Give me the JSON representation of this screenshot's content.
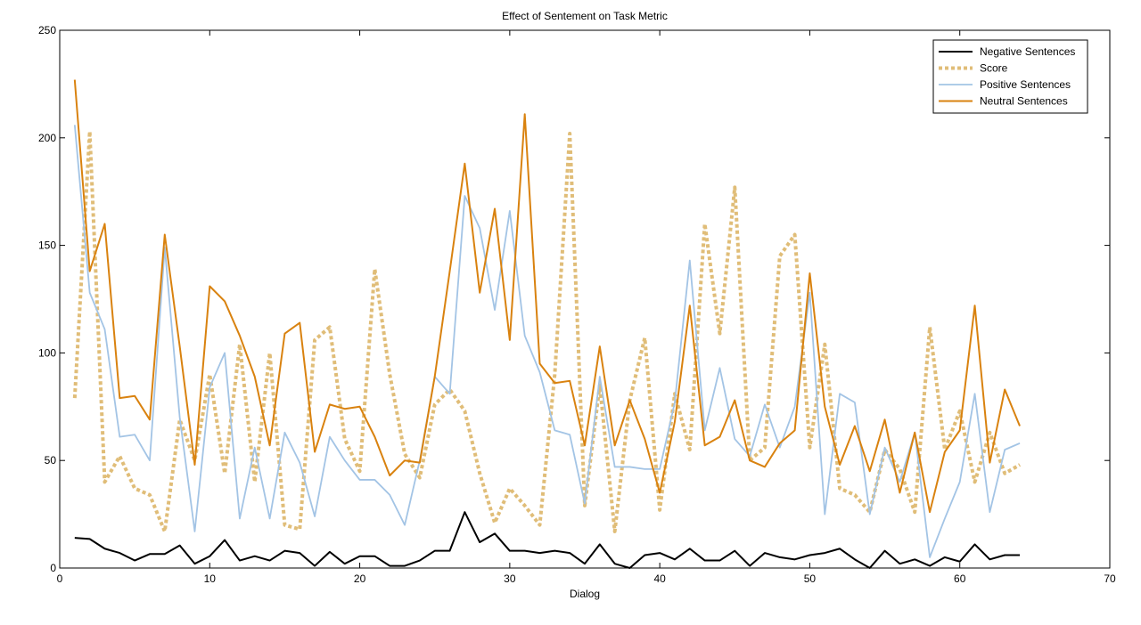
{
  "chart_data": {
    "type": "line",
    "title": "Effect of Sentement on Task Metric",
    "xlabel": "Dialog",
    "ylabel": "",
    "xlim": [
      0,
      70
    ],
    "ylim": [
      0,
      250
    ],
    "xticks": [
      0,
      10,
      20,
      30,
      40,
      50,
      60,
      70
    ],
    "yticks": [
      0,
      50,
      100,
      150,
      200,
      250
    ],
    "grid": false,
    "legend_position": "top-right",
    "x": [
      1,
      2,
      3,
      4,
      5,
      6,
      7,
      8,
      9,
      10,
      11,
      12,
      13,
      14,
      15,
      16,
      17,
      18,
      19,
      20,
      21,
      22,
      23,
      24,
      25,
      26,
      27,
      28,
      29,
      30,
      31,
      32,
      33,
      34,
      35,
      36,
      37,
      38,
      39,
      40,
      41,
      42,
      43,
      44,
      45,
      46,
      47,
      48,
      49,
      50,
      51,
      52,
      53,
      54,
      55,
      56,
      57,
      58,
      59,
      60,
      61,
      62,
      63,
      64
    ],
    "series": [
      {
        "name": "Negative Sentences",
        "color": "#000000",
        "style": "solid",
        "values": [
          14,
          13.5,
          9,
          7,
          3.5,
          6.5,
          6.5,
          10.5,
          2,
          5.5,
          13,
          3.5,
          5.5,
          3.5,
          8,
          7,
          1,
          7.5,
          2,
          5.5,
          5.5,
          1,
          1,
          3.5,
          8,
          8,
          26,
          12,
          16,
          8,
          8,
          7,
          8,
          7,
          2,
          11,
          2,
          0,
          6,
          7,
          4,
          9,
          3.5,
          3.5,
          8,
          1,
          7,
          5,
          4,
          6,
          7,
          9,
          4,
          0,
          8,
          2,
          4,
          1,
          5,
          3,
          11,
          4,
          6,
          6
        ]
      },
      {
        "name": "Score",
        "color": "#E0BD78",
        "style": "dotted",
        "values": [
          79,
          203,
          40,
          52,
          37,
          34,
          17,
          69,
          50,
          90,
          44,
          104,
          40,
          100,
          20,
          18,
          106,
          112,
          60,
          45,
          139,
          90,
          53,
          42,
          76,
          83,
          73,
          44,
          21,
          37,
          29,
          20,
          90,
          202,
          29,
          85,
          17,
          78,
          107,
          27,
          81,
          55,
          160,
          109,
          177,
          50,
          56,
          145,
          155,
          56,
          104,
          37,
          34,
          26,
          55,
          46,
          26,
          112,
          55,
          73,
          40,
          63,
          44,
          48
        ]
      },
      {
        "name": "Positive Sentences",
        "color": "#A3C4E5",
        "style": "solid",
        "values": [
          206,
          128,
          111,
          61,
          62,
          50,
          149,
          70,
          17,
          84,
          100,
          23,
          56,
          23,
          63,
          49,
          24,
          61,
          50,
          41,
          41,
          34,
          20,
          50,
          89,
          81,
          173,
          158,
          120,
          166,
          108,
          91,
          64,
          62,
          30,
          89,
          47,
          47,
          46,
          46,
          77,
          143,
          64,
          93,
          60,
          52,
          76,
          56,
          75,
          128,
          25,
          81,
          77,
          25,
          56,
          40,
          63,
          5,
          23,
          40,
          81,
          26,
          55,
          58
        ]
      },
      {
        "name": "Neutral Sentences",
        "color": "#D9820F",
        "style": "solid",
        "values": [
          227,
          138,
          160,
          79,
          80,
          69,
          155,
          103,
          48,
          131,
          124,
          108,
          89,
          57,
          109,
          114,
          54,
          76,
          74,
          75,
          61,
          43,
          50,
          49,
          89,
          138,
          188,
          128,
          167,
          106,
          211,
          95,
          86,
          87,
          57,
          103,
          57,
          78,
          60,
          35,
          68,
          122,
          57,
          61,
          78,
          50,
          47,
          58,
          64,
          137,
          75,
          48,
          66,
          45,
          69,
          35,
          63,
          26,
          54,
          64,
          122,
          49,
          83,
          66
        ]
      }
    ]
  }
}
